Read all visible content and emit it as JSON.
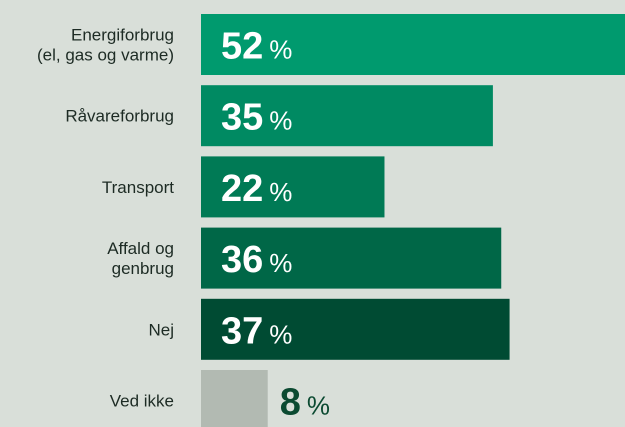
{
  "chart_data": {
    "type": "bar",
    "orientation": "horizontal",
    "categories": [
      "Energiforbrug\n(el, gas og varme)",
      "Råvareforbrug",
      "Transport",
      "Affald og\ngenbrug",
      "Nej",
      "Ved ikke"
    ],
    "values": [
      52,
      35,
      22,
      36,
      37,
      8
    ],
    "value_labels": [
      "52%",
      "35%",
      "22%",
      "36%",
      "37%",
      "8%"
    ],
    "colors": [
      "#009a6e",
      "#008a62",
      "#007a55",
      "#006747",
      "#004b33",
      "#b2bab2"
    ]
  }
}
